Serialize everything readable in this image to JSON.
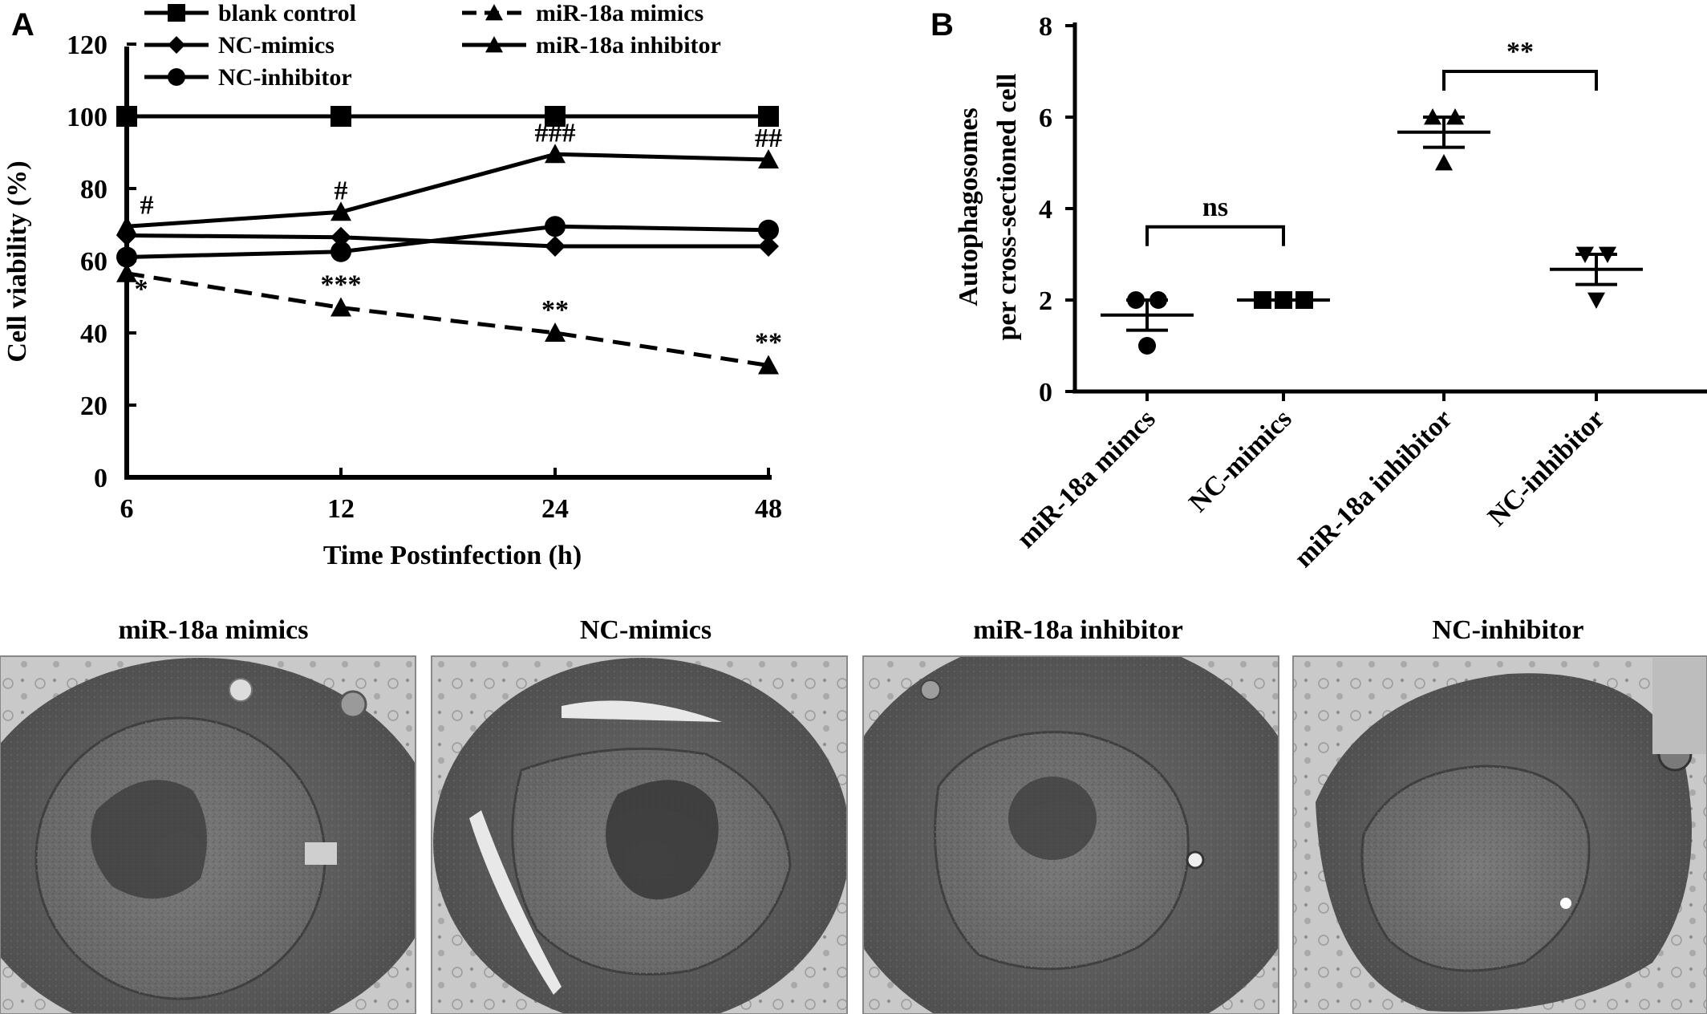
{
  "panel_a": {
    "letter": "A"
  },
  "panel_b": {
    "letter": "B"
  },
  "em_panels": {
    "titles": [
      "miR-18a mimics",
      "NC-mimics",
      "miR-18a inhibitor",
      "NC-inhibitor"
    ]
  },
  "chart_data": [
    {
      "type": "line",
      "title": "",
      "xlabel": "Time Postinfection (h)",
      "ylabel": "Cell viability (%)",
      "x": [
        "6",
        "12",
        "24",
        "48"
      ],
      "ylim": [
        0,
        120
      ],
      "yticks": [
        0,
        20,
        40,
        60,
        80,
        100,
        120
      ],
      "grid": false,
      "legend_position": "top",
      "series": [
        {
          "name": "blank control",
          "values": [
            100,
            100,
            100,
            100
          ],
          "marker": "square",
          "dash": "solid",
          "annotations": [
            "",
            "",
            "",
            ""
          ]
        },
        {
          "name": "NC-mimics",
          "values": [
            67,
            66.5,
            64,
            64
          ],
          "marker": "diamond",
          "dash": "solid",
          "annotations": [
            "",
            "",
            "",
            ""
          ]
        },
        {
          "name": "NC-inhibitor",
          "values": [
            61,
            62.5,
            69.5,
            68.5
          ],
          "marker": "circle",
          "dash": "solid",
          "annotations": [
            "",
            "",
            "",
            ""
          ]
        },
        {
          "name": "miR-18a mimics",
          "values": [
            56.5,
            47,
            40,
            31
          ],
          "marker": "triangle",
          "dash": "dashed",
          "annotations": [
            "*",
            "***",
            "**",
            "**"
          ]
        },
        {
          "name": "miR-18a inhibitor",
          "values": [
            69.5,
            73.5,
            89.5,
            88
          ],
          "marker": "triangle",
          "dash": "solid",
          "annotations": [
            "#",
            "#",
            "###",
            "##"
          ]
        }
      ]
    },
    {
      "type": "scatter",
      "title": "",
      "xlabel": "",
      "ylabel_line1": "Autophagosomes",
      "ylabel_line2": "per cross-sectioned cell",
      "categories": [
        "miR-18a mimcs",
        "NC-mimics",
        "miR-18a inhibitor",
        "NC-inhibitor"
      ],
      "ylim": [
        0,
        8
      ],
      "yticks": [
        0,
        2,
        4,
        6,
        8
      ],
      "grid": false,
      "groups": [
        {
          "name": "miR-18a mimcs",
          "points": [
            2,
            2,
            1
          ],
          "marker": "circle",
          "mean": 1.67,
          "error": 0.33
        },
        {
          "name": "NC-mimics",
          "points": [
            2,
            2,
            2
          ],
          "marker": "square",
          "mean": 2.0,
          "error": 0.0
        },
        {
          "name": "miR-18a inhibitor",
          "points": [
            6,
            6,
            5
          ],
          "marker": "triangle",
          "mean": 5.67,
          "error": 0.33
        },
        {
          "name": "NC-inhibitor",
          "points": [
            3,
            3,
            2
          ],
          "marker": "triangle-down",
          "mean": 2.67,
          "error": 0.33
        }
      ],
      "significance": [
        {
          "from": 0,
          "to": 1,
          "label": "ns"
        },
        {
          "from": 2,
          "to": 3,
          "label": "**"
        }
      ]
    }
  ]
}
